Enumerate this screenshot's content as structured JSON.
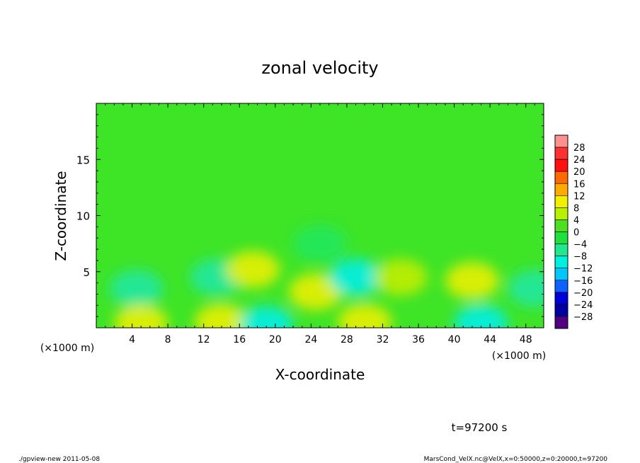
{
  "chart_data": {
    "type": "heatmap",
    "title": "zonal velocity",
    "xlabel": "X-coordinate",
    "ylabel": "Z-coordinate",
    "x_unit_left": "(×1000 m)",
    "x_unit_right": "(×1000 m)",
    "x_ticks": [
      "4",
      "8",
      "12",
      "16",
      "20",
      "24",
      "28",
      "32",
      "36",
      "40",
      "44",
      "48"
    ],
    "x_tick_values": [
      4,
      8,
      12,
      16,
      20,
      24,
      28,
      32,
      36,
      40,
      44,
      48
    ],
    "y_ticks": [
      "5",
      "10",
      "15"
    ],
    "y_tick_values": [
      5,
      10,
      15
    ],
    "xlim": [
      0,
      50
    ],
    "ylim": [
      0,
      20
    ],
    "colorbar": {
      "labels": [
        "28",
        "24",
        "20",
        "16",
        "12",
        "8",
        "4",
        "0",
        "−4",
        "−8",
        "−12",
        "−16",
        "−20",
        "−24",
        "−28"
      ],
      "levels": [
        28,
        24,
        20,
        16,
        12,
        8,
        4,
        0,
        -4,
        -8,
        -12,
        -16,
        -20,
        -24,
        -28
      ],
      "colors": [
        "#ff9090",
        "#ff3030",
        "#ff1010",
        "#ff6a00",
        "#ffaa00",
        "#f0f000",
        "#b8f000",
        "#4de020",
        "#20e040",
        "#20e890",
        "#00f0e0",
        "#00c8ff",
        "#1060ff",
        "#0000d8",
        "#0000a0",
        "#500080"
      ]
    },
    "anomalies": [
      {
        "x": 4.5,
        "z": 3.5,
        "v": -6
      },
      {
        "x": 13.5,
        "z": 4.5,
        "v": -7
      },
      {
        "x": 17.5,
        "z": 5.2,
        "v": 7
      },
      {
        "x": 24.5,
        "z": 3.2,
        "v": 6
      },
      {
        "x": 29,
        "z": 4.5,
        "v": -8
      },
      {
        "x": 34,
        "z": 4.5,
        "v": 3
      },
      {
        "x": 42,
        "z": 4.2,
        "v": 8
      },
      {
        "x": 49,
        "z": 3.5,
        "v": -5
      },
      {
        "x": 5,
        "z": 0.4,
        "v": 7
      },
      {
        "x": 14,
        "z": 0.5,
        "v": 6
      },
      {
        "x": 19,
        "z": 0.3,
        "v": -9
      },
      {
        "x": 30,
        "z": 0.5,
        "v": 8
      },
      {
        "x": 43,
        "z": 0.4,
        "v": -10
      },
      {
        "x": 25,
        "z": 7.5,
        "v": -3
      }
    ]
  },
  "time_label": "t=97200 s",
  "footer_left": "./gpview-new  2011-05-08",
  "footer_right": "MarsCond_VelX.nc@VelX,x=0:50000,z=0:20000,t=97200"
}
